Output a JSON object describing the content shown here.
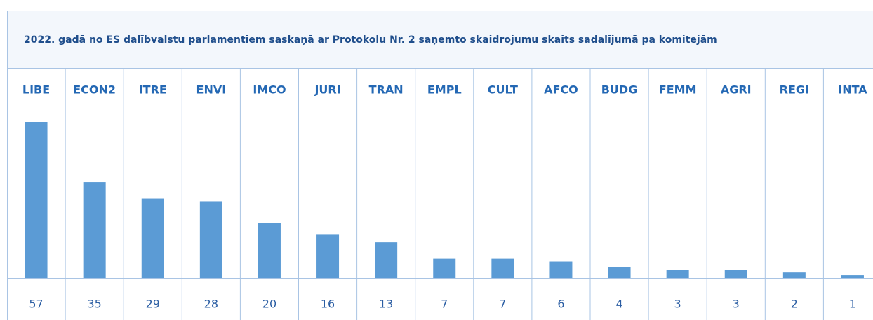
{
  "chart_data": {
    "type": "bar",
    "title": "2022. gadā no ES dalībvalstu parlamentiem saskaņā ar Protokolu Nr. 2 saņemto skaidrojumu skaits sadalījumā pa komitejām",
    "categories": [
      "LIBE",
      "ECON2",
      "ITRE",
      "ENVI",
      "IMCO",
      "JURI",
      "TRAN",
      "EMPL",
      "CULT",
      "AFCO",
      "BUDG",
      "FEMM",
      "AGRI",
      "REGI",
      "INTA"
    ],
    "values": [
      57,
      35,
      29,
      28,
      20,
      16,
      13,
      7,
      7,
      6,
      4,
      3,
      3,
      2,
      1
    ],
    "color": "#5b9bd5"
  }
}
